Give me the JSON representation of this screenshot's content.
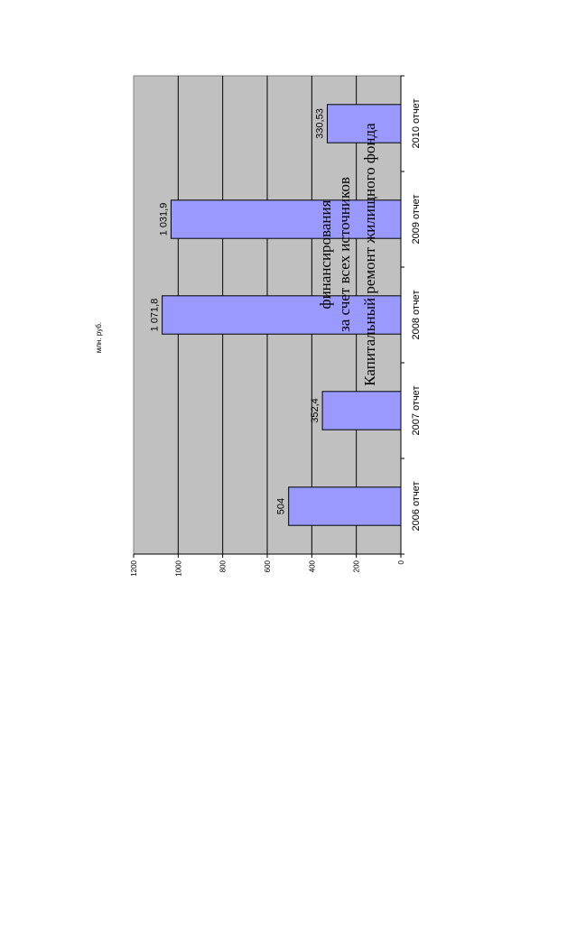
{
  "chart_data": {
    "type": "bar",
    "title": [
      "Капитальный ремонт жилищного фонда",
      "за счет всех источников",
      "финансирования"
    ],
    "ylabel": "млн. руб.",
    "categories": [
      "2006 отчет",
      "2007 отчет",
      "2008 отчет",
      "2009 отчет",
      "2010 отчет"
    ],
    "values": [
      504,
      352.4,
      1071.8,
      1031.9,
      330.53
    ],
    "value_labels": [
      "504",
      "352,4",
      "1 071,8",
      "1 031,9",
      "330,53"
    ],
    "ylim": [
      0,
      1200
    ],
    "yticks": [
      "0",
      "200",
      "400",
      "600",
      "800",
      "1000",
      "1200"
    ],
    "grid": true,
    "legend": "none",
    "orientation": "rotated-90",
    "colors": {
      "bar": "#9999ff",
      "plot_background": "#c0c0c0",
      "gridline": "#000000"
    }
  }
}
